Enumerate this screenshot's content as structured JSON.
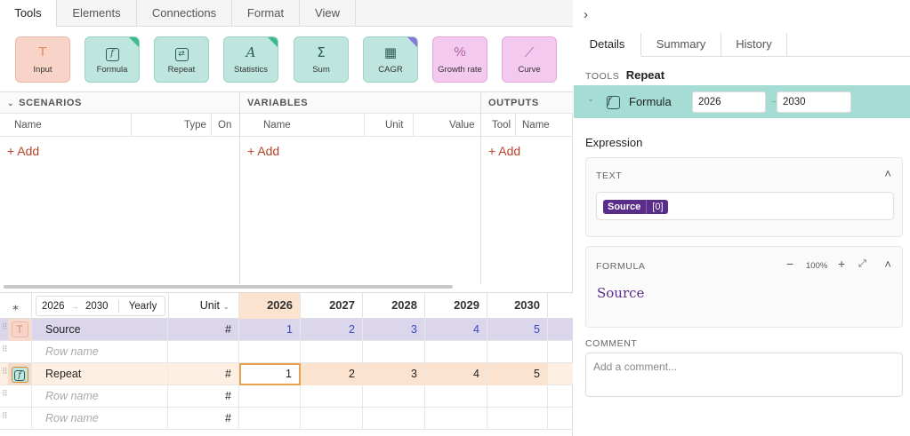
{
  "tabs": [
    "Tools",
    "Elements",
    "Connections",
    "Format",
    "View"
  ],
  "tools": [
    {
      "label": "Input",
      "icon": "T"
    },
    {
      "label": "Formula",
      "icon": "f"
    },
    {
      "label": "Repeat",
      "icon": "⇄"
    },
    {
      "label": "Statistics",
      "icon": "A"
    },
    {
      "label": "Sum",
      "icon": "Σ"
    },
    {
      "label": "CAGR",
      "icon": "▦"
    },
    {
      "label": "Growth rate",
      "icon": "%"
    },
    {
      "label": "Curve",
      "icon": "⟋"
    }
  ],
  "scenarios": {
    "title": "SCENARIOS",
    "cols": [
      "Name",
      "Type",
      "On"
    ],
    "add": "+ Add"
  },
  "variables": {
    "title": "VARIABLES",
    "cols": [
      "Name",
      "Unit",
      "Value"
    ],
    "add": "+ Add"
  },
  "outputs": {
    "title": "OUTPUTS",
    "cols": [
      "Tool",
      "Name"
    ],
    "add": "+ Add"
  },
  "grid": {
    "start_year": "2026",
    "end_year": "2030",
    "period": "Yearly",
    "unit_header": "Unit",
    "years": [
      "2026",
      "2027",
      "2028",
      "2029",
      "2030"
    ],
    "rows": [
      {
        "name": "Source",
        "unit": "#",
        "values": [
          "1",
          "2",
          "3",
          "4",
          "5"
        ]
      },
      {
        "name": "Row name",
        "unit": "",
        "values": []
      },
      {
        "name": "Repeat",
        "unit": "#",
        "values": [
          "1",
          "2",
          "3",
          "4",
          "5"
        ]
      },
      {
        "name": "Row name",
        "unit": "#",
        "values": []
      },
      {
        "name": "Row name",
        "unit": "#",
        "values": []
      }
    ]
  },
  "right": {
    "tabs": [
      "Details",
      "Summary",
      "History"
    ],
    "tools_label": "TOOLS",
    "tool_name": "Repeat",
    "selected": {
      "name": "Formula",
      "from": "2026",
      "to": "2030"
    },
    "expression_label": "Expression",
    "text_label": "TEXT",
    "token_name": "Source",
    "token_index": "[0]",
    "formula_label": "FORMULA",
    "zoom": "100%",
    "formula_text": "Source",
    "comment_label": "COMMENT",
    "comment_placeholder": "Add a comment..."
  },
  "colors": {
    "accent_teal": "#a5dcd3",
    "source_row": "#dcd6ec",
    "repeat_row": "#fbe3d0",
    "token": "#5b2d8b"
  }
}
